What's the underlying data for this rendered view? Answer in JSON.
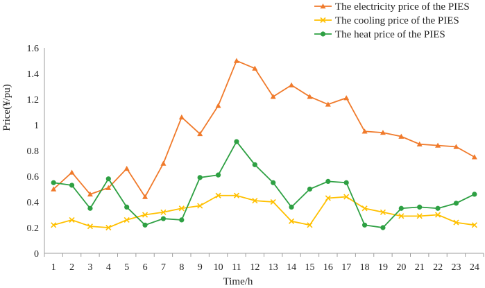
{
  "chart_data": {
    "type": "line",
    "xlabel": "Time/h",
    "ylabel": "Price(¥/pu)",
    "ylim": [
      0,
      1.6
    ],
    "yticks": [
      "0",
      "0.2",
      "0.4",
      "0.6",
      "0.8",
      "1",
      "1.2",
      "1.4",
      "1.6"
    ],
    "categories": [
      "1",
      "2",
      "3",
      "4",
      "5",
      "6",
      "7",
      "8",
      "9",
      "10",
      "11",
      "12",
      "13",
      "14",
      "15",
      "16",
      "17",
      "18",
      "19",
      "20",
      "21",
      "22",
      "23",
      "24"
    ],
    "grid": false,
    "legend_position": "top-right",
    "series": [
      {
        "name": "The electricity price of the PIES",
        "color": "#F07A2B",
        "marker": "triangle",
        "values": [
          0.5,
          0.63,
          0.46,
          0.51,
          0.66,
          0.44,
          0.7,
          1.06,
          0.93,
          1.15,
          1.5,
          1.44,
          1.22,
          1.31,
          1.22,
          1.16,
          1.21,
          0.95,
          0.94,
          0.91,
          0.85,
          0.84,
          0.83,
          0.75
        ]
      },
      {
        "name": "The cooling price of the PIES",
        "color": "#FFC000",
        "marker": "x",
        "values": [
          0.22,
          0.26,
          0.21,
          0.2,
          0.26,
          0.3,
          0.32,
          0.35,
          0.37,
          0.45,
          0.45,
          0.41,
          0.4,
          0.25,
          0.22,
          0.43,
          0.44,
          0.35,
          0.32,
          0.29,
          0.29,
          0.3,
          0.24,
          0.22
        ]
      },
      {
        "name": "The heat price of the PIES",
        "color": "#2EA043",
        "marker": "circle",
        "values": [
          0.55,
          0.53,
          0.35,
          0.58,
          0.36,
          0.22,
          0.27,
          0.26,
          0.59,
          0.61,
          0.87,
          0.69,
          0.55,
          0.36,
          0.5,
          0.56,
          0.55,
          0.22,
          0.2,
          0.35,
          0.36,
          0.35,
          0.39,
          0.46
        ]
      }
    ]
  }
}
